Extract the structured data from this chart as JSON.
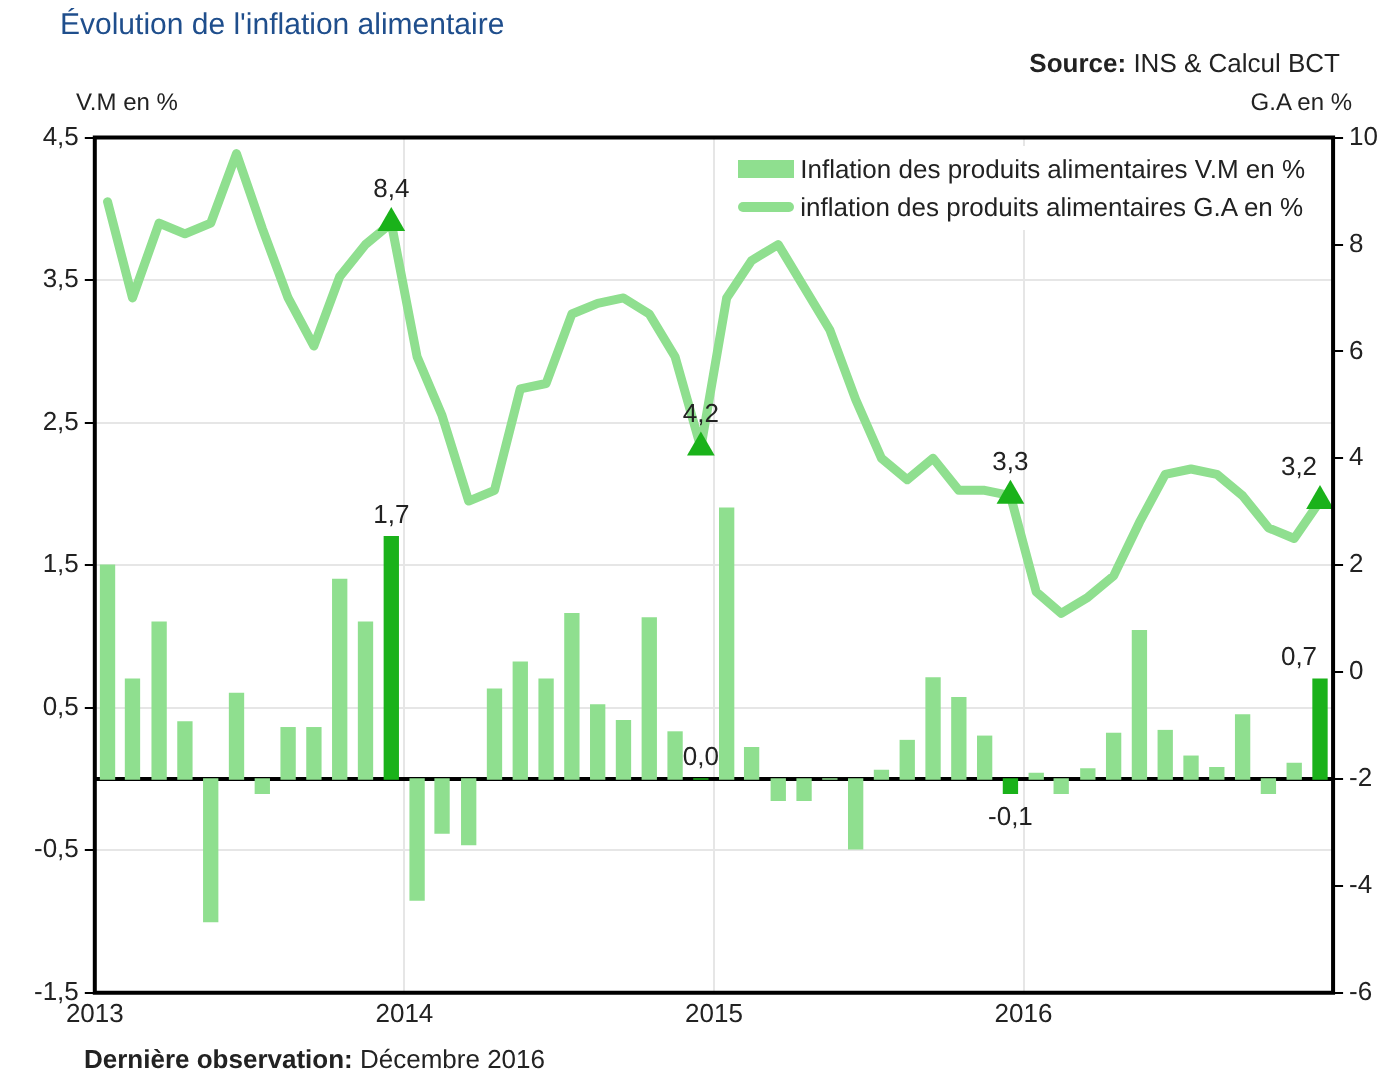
{
  "chart_data": {
    "type": "bar",
    "title": "Évolution de l'inflation alimentaire",
    "ylabel": "V.M en %",
    "y2label": "G.A en %",
    "annotations": [
      "Source: INS & Calcul BCT",
      "Dernière observation: Décembre 2016"
    ],
    "x": [
      "2013-01-16",
      "2013-02-15",
      "2013-03-16",
      "2013-04-16",
      "2013-05-16",
      "2013-06-16",
      "2013-07-16",
      "2013-08-16",
      "2013-09-16",
      "2013-10-16",
      "2013-11-16",
      "2013-12-16",
      "2014-01-16",
      "2014-02-15",
      "2014-03-16",
      "2014-04-16",
      "2014-05-16",
      "2014-06-16",
      "2014-07-16",
      "2014-08-16",
      "2014-09-16",
      "2014-10-16",
      "2014-11-16",
      "2014-12-16",
      "2015-01-16",
      "2015-02-15",
      "2015-03-16",
      "2015-04-16",
      "2015-05-16",
      "2015-06-16",
      "2015-07-16",
      "2015-08-16",
      "2015-09-16",
      "2015-10-16",
      "2015-11-16",
      "2015-12-16",
      "2016-01-16",
      "2016-02-15",
      "2016-03-16",
      "2016-04-16",
      "2016-05-16",
      "2016-06-16",
      "2016-07-16",
      "2016-08-16",
      "2016-09-16",
      "2016-10-16",
      "2016-11-16",
      "2016-12-16"
    ],
    "series": [
      {
        "name": "Inflation des produits alimentaires V.M en %",
        "color": "#8fdf8f",
        "colors": [
          "#8fdf8f",
          "#8fdf8f",
          "#8fdf8f",
          "#8fdf8f",
          "#8fdf8f",
          "#8fdf8f",
          "#8fdf8f",
          "#8fdf8f",
          "#8fdf8f",
          "#8fdf8f",
          "#8fdf8f",
          "#1ab21a",
          "#8fdf8f",
          "#8fdf8f",
          "#8fdf8f",
          "#8fdf8f",
          "#8fdf8f",
          "#8fdf8f",
          "#8fdf8f",
          "#8fdf8f",
          "#8fdf8f",
          "#8fdf8f",
          "#8fdf8f",
          "#1ab21a",
          "#8fdf8f",
          "#8fdf8f",
          "#8fdf8f",
          "#8fdf8f",
          "#8fdf8f",
          "#8fdf8f",
          "#8fdf8f",
          "#8fdf8f",
          "#8fdf8f",
          "#8fdf8f",
          "#8fdf8f",
          "#1ab21a",
          "#8fdf8f",
          "#8fdf8f",
          "#8fdf8f",
          "#8fdf8f",
          "#8fdf8f",
          "#8fdf8f",
          "#8fdf8f",
          "#8fdf8f",
          "#8fdf8f",
          "#8fdf8f",
          "#8fdf8f",
          "#1ab21a"
        ],
        "values": [
          1.5,
          0.7,
          1.1,
          0.4,
          -1.0,
          0.6,
          -0.1,
          0.36,
          0.36,
          1.4,
          1.1,
          1.7,
          -0.85,
          -0.38,
          -0.46,
          0.63,
          0.82,
          0.7,
          1.16,
          0.52,
          0.41,
          1.13,
          0.33,
          0.0,
          1.9,
          0.22,
          -0.15,
          -0.15,
          0.0,
          -0.49,
          0.06,
          0.27,
          0.71,
          0.57,
          0.3,
          -0.1,
          0.04,
          -0.1,
          0.07,
          0.32,
          1.04,
          0.34,
          0.16,
          0.08,
          0.45,
          -0.1,
          0.11,
          0.7
        ],
        "value_labels": [
          null,
          null,
          null,
          null,
          null,
          null,
          null,
          null,
          null,
          null,
          null,
          "1,7",
          null,
          null,
          null,
          null,
          null,
          null,
          null,
          null,
          null,
          null,
          null,
          "0,0",
          null,
          null,
          null,
          null,
          null,
          null,
          null,
          null,
          null,
          null,
          null,
          "-0,1",
          null,
          null,
          null,
          null,
          null,
          null,
          null,
          null,
          null,
          null,
          null,
          "0,7"
        ]
      },
      {
        "name": "inflation des produits alimentaires G.A en %",
        "type": "line",
        "axis": "y2",
        "color": "#8fdf8f",
        "values": [
          8.8,
          7.0,
          8.4,
          8.2,
          8.4,
          9.7,
          8.3,
          7.0,
          6.1,
          7.4,
          8.0,
          8.4,
          5.9,
          4.8,
          3.2,
          3.4,
          5.3,
          5.4,
          6.7,
          6.9,
          7.0,
          6.7,
          5.9,
          4.2,
          7.0,
          7.7,
          8.0,
          7.2,
          6.4,
          5.1,
          4.0,
          3.6,
          4.0,
          3.4,
          3.4,
          3.3,
          1.5,
          1.1,
          1.4,
          1.8,
          2.8,
          3.7,
          3.8,
          3.7,
          3.3,
          2.7,
          2.5,
          3.2
        ]
      },
      {
        "type": "scatter",
        "axis": "y2",
        "color": "#1ab21a",
        "marker": "triangle",
        "x": [
          "2013-12-16",
          "2014-12-16",
          "2015-12-16",
          "2016-12-16"
        ],
        "values": [
          8.4,
          4.2,
          3.3,
          3.2
        ],
        "value_labels": [
          "8,4",
          "4,2",
          "3,3",
          "3,2"
        ]
      }
    ],
    "xlim": [
      "2013",
      "2017"
    ],
    "xticks": [
      "2013",
      "2014",
      "2015",
      "2016"
    ],
    "ylim": [
      -1.5,
      4.5
    ],
    "yticks": [
      {
        "value": -1.5,
        "label": "-1,5"
      },
      {
        "value": -0.5,
        "label": "-0,5"
      },
      {
        "value": 0.5,
        "label": "0,5"
      },
      {
        "value": 1.5,
        "label": "1,5"
      },
      {
        "value": 2.5,
        "label": "2,5"
      },
      {
        "value": 3.5,
        "label": "3,5"
      },
      {
        "value": 4.5,
        "label": "4,5"
      }
    ],
    "y2lim": [
      -6,
      10
    ],
    "y2ticks": [
      -6,
      -4,
      -2,
      0,
      2,
      4,
      6,
      8,
      10
    ],
    "grid": true,
    "legend": "top right"
  }
}
